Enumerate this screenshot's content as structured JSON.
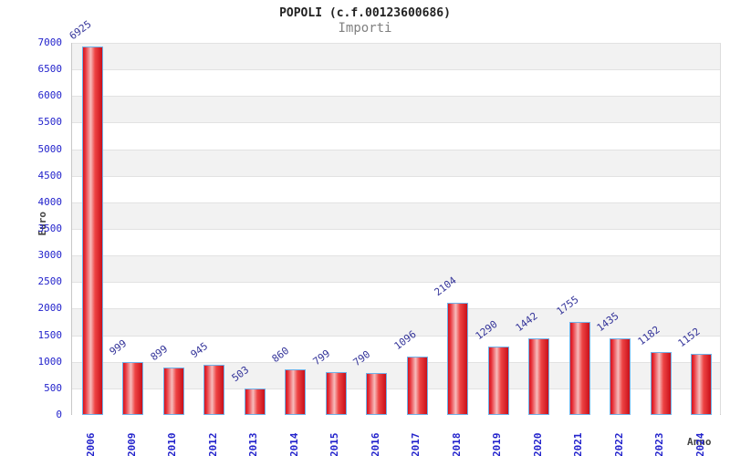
{
  "chart_data": {
    "type": "bar",
    "title": "POPOLI (c.f.00123600686)",
    "subtitle": "Importi",
    "xlabel": "Anno",
    "ylabel": "Euro",
    "categories": [
      "2006",
      "2009",
      "2010",
      "2012",
      "2013",
      "2014",
      "2015",
      "2016",
      "2017",
      "2018",
      "2019",
      "2020",
      "2021",
      "2022",
      "2023",
      "2024"
    ],
    "values": [
      6925,
      999,
      899,
      945,
      503,
      860,
      799,
      790,
      1096,
      2104,
      1290,
      1442,
      1755,
      1435,
      1182,
      1152
    ],
    "ylim": [
      0,
      7000
    ],
    "ytick_step": 500,
    "grid": "horizontal alternating bands",
    "legend": "none",
    "colors": {
      "bar_red": "#d31420",
      "bar_highlight": "#f6bcbc",
      "bar_border": "#6fb1e8",
      "band_gray": "#f2f2f2",
      "band_white": "#ffffff",
      "grid_line": "#e2e2e2",
      "tick_label_blue": "#2323cc",
      "value_label_navy": "#333399",
      "title_color": "#222222",
      "subtitle_color": "#808080",
      "axis_label_color": "#444444"
    }
  }
}
